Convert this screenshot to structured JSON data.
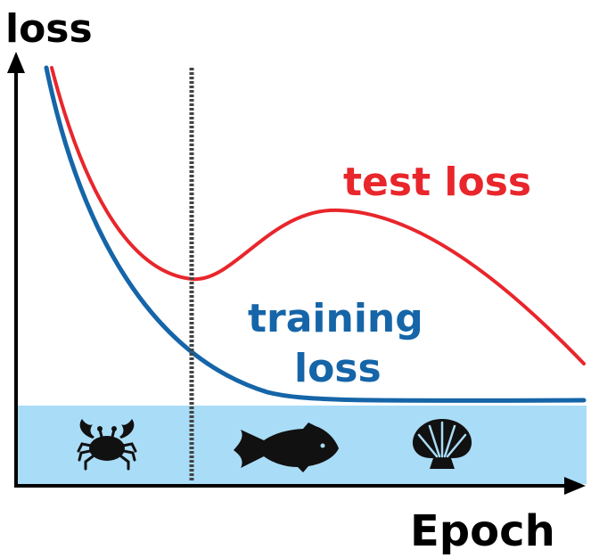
{
  "labels": {
    "y_axis": "loss",
    "x_axis": "Epoch",
    "test_curve": "test loss",
    "training_curve_line1": "training",
    "training_curve_line2": "loss"
  },
  "colors": {
    "test_loss": "#e8262b",
    "training_loss": "#1565a8",
    "band": "#a9dcf7",
    "axis": "#000000",
    "divider": "#444444"
  },
  "icons": [
    "crab-icon",
    "fish-icon",
    "shell-icon"
  ]
}
